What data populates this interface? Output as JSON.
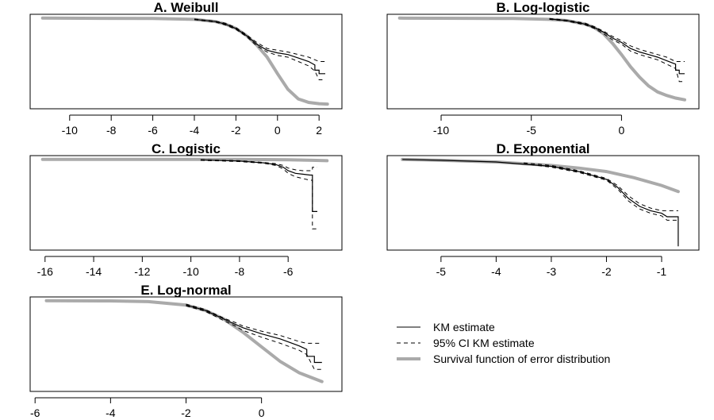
{
  "chart_data": [
    {
      "type": "line",
      "title": "A. Weibull",
      "xlim": [
        -11.3,
        2.5
      ],
      "ylim": [
        0,
        1
      ],
      "xticks": [
        -10,
        -8,
        -6,
        -4,
        -2,
        0,
        2
      ],
      "xtick_labels": [
        "-10",
        "-8",
        "-6",
        "-4",
        "-2",
        "0",
        "2"
      ],
      "series": [
        {
          "name": "Survival function of error distribution",
          "style": "thick-gray",
          "x": [
            -11.3,
            -6,
            -4,
            -3,
            -2.5,
            -2,
            -1.5,
            -1,
            -0.5,
            0,
            0.5,
            1,
            1.5,
            2,
            2.4
          ],
          "y": [
            1.0,
            0.995,
            0.985,
            0.96,
            0.93,
            0.88,
            0.8,
            0.69,
            0.55,
            0.36,
            0.18,
            0.07,
            0.03,
            0.015,
            0.01
          ]
        },
        {
          "name": "KM estimate",
          "style": "solid",
          "x": [
            -4,
            -3,
            -2.5,
            -2,
            -1.5,
            -1,
            -0.5,
            0,
            0.5,
            1,
            1.5,
            1.8,
            1.8,
            2.0,
            2.0,
            2.3
          ],
          "y": [
            0.985,
            0.96,
            0.93,
            0.88,
            0.8,
            0.7,
            0.63,
            0.6,
            0.58,
            0.54,
            0.5,
            0.46,
            0.4,
            0.4,
            0.36,
            0.36
          ]
        },
        {
          "name": "95% CI KM estimate",
          "style": "dashed",
          "x": [
            -4,
            -3,
            -2.5,
            -2,
            -1.5,
            -1,
            -0.5,
            0,
            0.5,
            1,
            1.5,
            2.0,
            2.3
          ],
          "y": [
            0.99,
            0.965,
            0.94,
            0.89,
            0.81,
            0.72,
            0.65,
            0.63,
            0.61,
            0.58,
            0.55,
            0.5,
            0.5
          ]
        },
        {
          "name": "95% CI KM estimate",
          "style": "dashed",
          "x": [
            -4,
            -3,
            -2.5,
            -2,
            -1.5,
            -1,
            -0.5,
            0,
            0.5,
            1,
            1.5,
            1.8,
            2.0,
            2.3
          ],
          "y": [
            0.98,
            0.955,
            0.92,
            0.87,
            0.79,
            0.68,
            0.61,
            0.57,
            0.55,
            0.5,
            0.45,
            0.39,
            0.29,
            0.29
          ]
        }
      ]
    },
    {
      "type": "line",
      "title": "B. Log-logistic",
      "xlim": [
        -12.3,
        3.6
      ],
      "ylim": [
        0,
        1
      ],
      "xticks": [
        -10,
        -5,
        0
      ],
      "xtick_labels": [
        "-10",
        "-5",
        "0"
      ],
      "series": [
        {
          "name": "Survival function of error distribution",
          "style": "thick-gray",
          "x": [
            -12.3,
            -6,
            -4,
            -3,
            -2,
            -1.5,
            -1,
            -0.5,
            0,
            0.5,
            1,
            1.5,
            2,
            2.5,
            3,
            3.5
          ],
          "y": [
            1.0,
            0.995,
            0.985,
            0.97,
            0.93,
            0.89,
            0.82,
            0.71,
            0.58,
            0.44,
            0.32,
            0.22,
            0.15,
            0.11,
            0.08,
            0.06
          ]
        },
        {
          "name": "KM estimate",
          "style": "solid",
          "x": [
            -4,
            -3,
            -2,
            -1.5,
            -1,
            -0.5,
            0,
            0.5,
            1,
            1.5,
            2,
            2.5,
            3,
            3.0,
            3.2,
            3.2,
            3.5
          ],
          "y": [
            0.99,
            0.97,
            0.93,
            0.89,
            0.84,
            0.77,
            0.72,
            0.65,
            0.61,
            0.58,
            0.55,
            0.51,
            0.47,
            0.4,
            0.4,
            0.36,
            0.36
          ]
        },
        {
          "name": "95% CI KM estimate",
          "style": "dashed",
          "x": [
            -4,
            -3,
            -2,
            -1.5,
            -1,
            -0.5,
            0,
            0.5,
            1,
            1.5,
            2,
            2.5,
            3,
            3.5
          ],
          "y": [
            0.995,
            0.975,
            0.94,
            0.9,
            0.85,
            0.79,
            0.74,
            0.68,
            0.64,
            0.61,
            0.58,
            0.55,
            0.5,
            0.5
          ]
        },
        {
          "name": "95% CI KM estimate",
          "style": "dashed",
          "x": [
            -4,
            -3,
            -2,
            -1.5,
            -1,
            -0.5,
            0,
            0.5,
            1,
            1.5,
            2,
            2.5,
            3,
            3.2,
            3.5
          ],
          "y": [
            0.985,
            0.965,
            0.92,
            0.88,
            0.82,
            0.75,
            0.7,
            0.62,
            0.58,
            0.55,
            0.52,
            0.47,
            0.42,
            0.27,
            0.27
          ]
        }
      ]
    },
    {
      "type": "line",
      "title": "C. Logistic",
      "xlim": [
        -16.1,
        -4.3
      ],
      "ylim": [
        0,
        1
      ],
      "xticks": [
        -16,
        -14,
        -12,
        -10,
        -8,
        -6
      ],
      "xtick_labels": [
        "-16",
        "-14",
        "-12",
        "-10",
        "-8",
        "-6"
      ],
      "series": [
        {
          "name": "Survival function of error distribution",
          "style": "thick-gray",
          "x": [
            -16.1,
            -10,
            -8,
            -6,
            -5,
            -4.4
          ],
          "y": [
            1.0,
            1.0,
            1.0,
            0.995,
            0.99,
            0.985
          ]
        },
        {
          "name": "KM estimate",
          "style": "solid",
          "x": [
            -9.6,
            -8,
            -7,
            -6.5,
            -6.2,
            -6.0,
            -5.7,
            -5.4,
            -5.1,
            -5.0,
            -5.0,
            -4.8
          ],
          "y": [
            0.995,
            0.98,
            0.96,
            0.94,
            0.91,
            0.87,
            0.84,
            0.83,
            0.82,
            0.82,
            0.4,
            0.4
          ]
        },
        {
          "name": "95% CI KM estimate",
          "style": "dashed",
          "x": [
            -9.6,
            -8,
            -7,
            -6.5,
            -6.2,
            -6.0,
            -5.7,
            -5.4,
            -5.1,
            -5.0,
            -5.0,
            -4.8
          ],
          "y": [
            0.998,
            0.985,
            0.965,
            0.95,
            0.93,
            0.9,
            0.88,
            0.87,
            0.87,
            0.87,
            0.91,
            0.91
          ]
        },
        {
          "name": "95% CI KM estimate",
          "style": "dashed",
          "x": [
            -9.6,
            -8,
            -7,
            -6.5,
            -6.2,
            -6.0,
            -5.7,
            -5.4,
            -5.1,
            -5.0,
            -5.0,
            -4.8
          ],
          "y": [
            0.99,
            0.975,
            0.955,
            0.93,
            0.89,
            0.84,
            0.8,
            0.78,
            0.76,
            0.76,
            0.2,
            0.2
          ]
        }
      ]
    },
    {
      "type": "line",
      "title": "D. Exponential",
      "xlim": [
        -5.75,
        -0.55
      ],
      "ylim": [
        0,
        1
      ],
      "xticks": [
        -5,
        -4,
        -3,
        -2,
        -1
      ],
      "xtick_labels": [
        "-5",
        "-4",
        "-3",
        "-2",
        "-1"
      ],
      "series": [
        {
          "name": "Survival function of error distribution",
          "style": "thick-gray",
          "x": [
            -5.7,
            -5,
            -4,
            -3,
            -2.5,
            -2,
            -1.5,
            -1,
            -0.7
          ],
          "y": [
            1.0,
            0.99,
            0.97,
            0.93,
            0.9,
            0.86,
            0.79,
            0.7,
            0.63
          ]
        },
        {
          "name": "KM estimate",
          "style": "solid",
          "x": [
            -5.7,
            -5,
            -4,
            -3,
            -2.5,
            -2,
            -1.8,
            -1.6,
            -1.4,
            -1.2,
            -1,
            -0.9,
            -0.7,
            -0.7
          ],
          "y": [
            1.0,
            0.99,
            0.97,
            0.92,
            0.86,
            0.77,
            0.68,
            0.55,
            0.46,
            0.41,
            0.38,
            0.34,
            0.34,
            0.0
          ]
        },
        {
          "name": "95% CI KM estimate",
          "style": "dashed",
          "x": [
            -3.5,
            -3,
            -2.5,
            -2,
            -1.8,
            -1.6,
            -1.4,
            -1.2,
            -1,
            -0.7
          ],
          "y": [
            0.96,
            0.93,
            0.87,
            0.78,
            0.7,
            0.58,
            0.49,
            0.44,
            0.41,
            0.41
          ]
        },
        {
          "name": "95% CI KM estimate",
          "style": "dashed",
          "x": [
            -3.5,
            -3,
            -2.5,
            -2,
            -1.8,
            -1.6,
            -1.4,
            -1.2,
            -1,
            -0.9,
            -0.7
          ],
          "y": [
            0.95,
            0.91,
            0.85,
            0.76,
            0.66,
            0.52,
            0.43,
            0.38,
            0.35,
            0.3,
            0.3
          ]
        }
      ]
    },
    {
      "type": "line",
      "title": "E. Log-normal",
      "xlim": [
        -5.8,
        1.8
      ],
      "ylim": [
        0,
        1
      ],
      "xticks": [
        -6,
        -4,
        -2,
        0
      ],
      "xtick_labels": [
        "-6",
        "-4",
        "-2",
        "0"
      ],
      "series": [
        {
          "name": "Survival function of error distribution",
          "style": "thick-gray",
          "x": [
            -5.7,
            -4,
            -3,
            -2,
            -1.5,
            -1,
            -0.5,
            0,
            0.5,
            1,
            1.6
          ],
          "y": [
            1.0,
            0.998,
            0.99,
            0.95,
            0.89,
            0.79,
            0.64,
            0.47,
            0.3,
            0.17,
            0.07
          ]
        },
        {
          "name": "KM estimate",
          "style": "solid",
          "x": [
            -2,
            -1.5,
            -1,
            -0.7,
            -0.5,
            0,
            0.5,
            1,
            1.2,
            1.2,
            1.4,
            1.4,
            1.6
          ],
          "y": [
            0.95,
            0.89,
            0.79,
            0.73,
            0.69,
            0.62,
            0.56,
            0.48,
            0.44,
            0.36,
            0.36,
            0.29,
            0.29
          ]
        },
        {
          "name": "95% CI KM estimate",
          "style": "dashed",
          "x": [
            -2,
            -1.5,
            -1,
            -0.7,
            -0.5,
            0,
            0.5,
            1,
            1.2,
            1.4,
            1.6
          ],
          "y": [
            0.96,
            0.9,
            0.8,
            0.75,
            0.71,
            0.65,
            0.6,
            0.53,
            0.51,
            0.51,
            0.51
          ]
        },
        {
          "name": "95% CI KM estimate",
          "style": "dashed",
          "x": [
            -2,
            -1.5,
            -1,
            -0.7,
            -0.5,
            0,
            0.5,
            1,
            1.2,
            1.4,
            1.6
          ],
          "y": [
            0.94,
            0.88,
            0.77,
            0.71,
            0.66,
            0.58,
            0.51,
            0.43,
            0.38,
            0.21,
            0.21
          ]
        }
      ]
    }
  ],
  "legend": {
    "items": [
      {
        "label": "KM estimate",
        "style": "solid"
      },
      {
        "label": "95% CI KM estimate",
        "style": "dashed"
      },
      {
        "label": "Survival function of error distribution",
        "style": "thick-gray"
      }
    ]
  },
  "colors": {
    "km": "#000000",
    "survival": "#aaaaaa",
    "axis": "#000000"
  }
}
